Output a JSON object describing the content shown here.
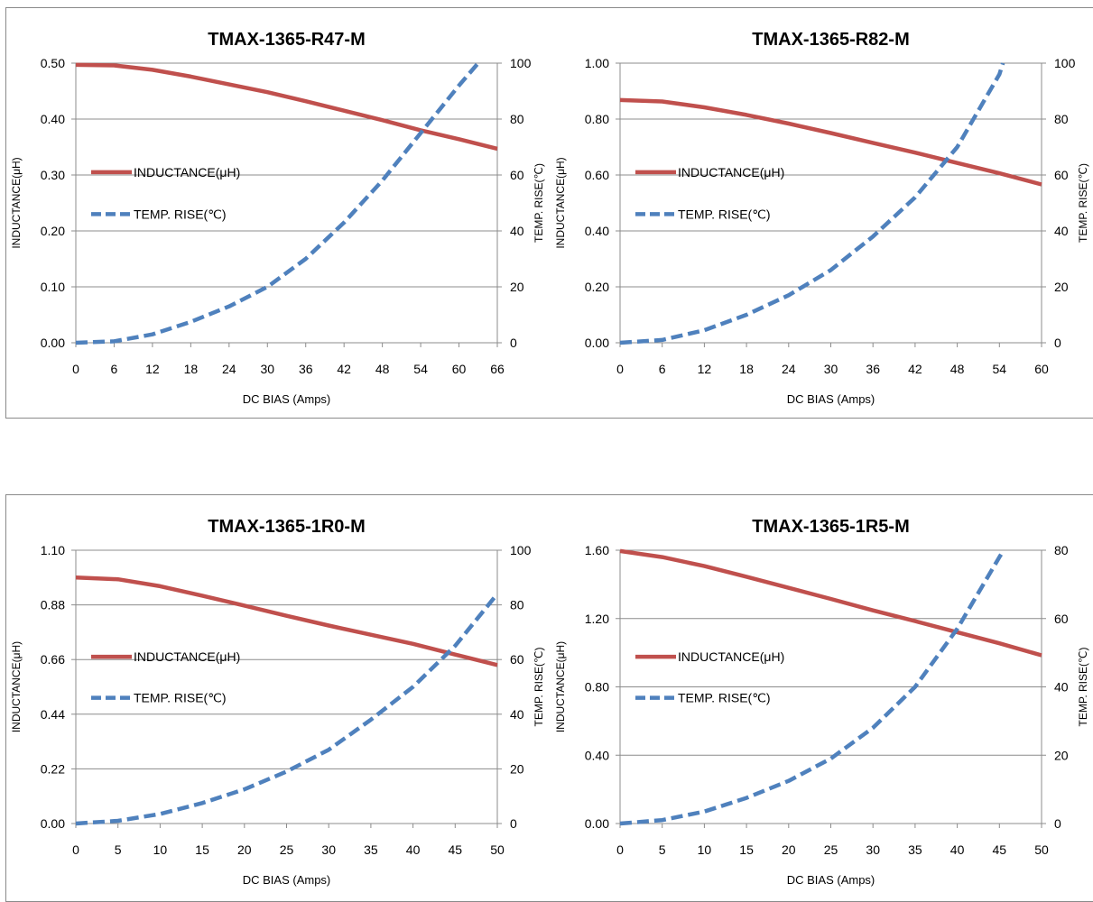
{
  "legend_labels": {
    "inductance": "INDUCTANCE(μH)",
    "temp": "TEMP. RISE(℃)"
  },
  "colors": {
    "inductance": "#c0504d",
    "temp": "#4f81bd",
    "grid": "#8c8c8c"
  },
  "chart_data": [
    {
      "type": "line",
      "title": "TMAX-1365-R47-M",
      "xlabel": "DC BIAS  (Amps)",
      "ylabel": "INDUCTANCE(μH)",
      "y2label": "TEMP. RISE(℃)",
      "xlim": [
        0,
        66
      ],
      "xticks": [
        0,
        6,
        12,
        18,
        24,
        30,
        36,
        42,
        48,
        54,
        60,
        66
      ],
      "ylim": [
        0,
        0.5
      ],
      "yticks": [
        "0.00",
        "0.10",
        "0.20",
        "0.30",
        "0.40",
        "0.50"
      ],
      "y2lim": [
        0,
        100
      ],
      "y2ticks": [
        "0",
        "20",
        "40",
        "60",
        "80",
        "100"
      ],
      "legend": "left-middle",
      "grid": true,
      "series": [
        {
          "name": "INDUCTANCE(μH)",
          "axis": "left",
          "style": "solid",
          "x": [
            0,
            6,
            12,
            18,
            24,
            30,
            36,
            42,
            48,
            54,
            60,
            66
          ],
          "y": [
            0.497,
            0.496,
            0.488,
            0.476,
            0.462,
            0.448,
            0.432,
            0.415,
            0.398,
            0.38,
            0.364,
            0.347
          ]
        },
        {
          "name": "TEMP. RISE(℃)",
          "axis": "right",
          "style": "dashed",
          "x": [
            0,
            6,
            12,
            18,
            24,
            30,
            36,
            42,
            48,
            54,
            60,
            63
          ],
          "y": [
            0,
            0.5,
            3,
            7.5,
            13,
            20,
            30,
            43,
            58,
            75,
            92,
            100
          ]
        }
      ]
    },
    {
      "type": "line",
      "title": "TMAX-1365-R82-M",
      "xlabel": "DC BIAS  (Amps)",
      "ylabel": "INDUCTANCE(μH)",
      "y2label": "TEMP. RISE(℃)",
      "xlim": [
        0,
        60
      ],
      "xticks": [
        0,
        6,
        12,
        18,
        24,
        30,
        36,
        42,
        48,
        54,
        60
      ],
      "ylim": [
        0,
        1.0
      ],
      "yticks": [
        "0.00",
        "0.20",
        "0.40",
        "0.60",
        "0.80",
        "1.00"
      ],
      "y2lim": [
        0,
        100
      ],
      "y2ticks": [
        "0",
        "20",
        "40",
        "60",
        "80",
        "100"
      ],
      "legend": "left-middle",
      "grid": true,
      "series": [
        {
          "name": "INDUCTANCE(μH)",
          "axis": "left",
          "style": "solid",
          "x": [
            0,
            6,
            12,
            18,
            24,
            30,
            36,
            42,
            48,
            54,
            60
          ],
          "y": [
            0.868,
            0.863,
            0.842,
            0.815,
            0.784,
            0.75,
            0.715,
            0.68,
            0.643,
            0.606,
            0.566
          ]
        },
        {
          "name": "TEMP. RISE(℃)",
          "axis": "right",
          "style": "dashed",
          "x": [
            0,
            6,
            12,
            18,
            24,
            30,
            36,
            42,
            48,
            54,
            54.5
          ],
          "y": [
            0,
            1,
            4.5,
            10,
            17,
            26,
            38,
            52,
            70,
            96,
            100
          ]
        }
      ]
    },
    {
      "type": "line",
      "title": "TMAX-1365-1R0-M",
      "xlabel": "DC BIAS  (Amps)",
      "ylabel": "INDUCTANCE(μH)",
      "y2label": "TEMP. RISE(℃)",
      "xlim": [
        0,
        50
      ],
      "xticks": [
        0,
        5,
        10,
        15,
        20,
        25,
        30,
        35,
        40,
        45,
        50
      ],
      "ylim": [
        0,
        1.1
      ],
      "yticks": [
        "0.00",
        "0.22",
        "0.44",
        "0.66",
        "0.88",
        "1.10"
      ],
      "y2lim": [
        0,
        100
      ],
      "y2ticks": [
        "0",
        "20",
        "40",
        "60",
        "80",
        "100"
      ],
      "legend": "left-middle",
      "grid": true,
      "series": [
        {
          "name": "INDUCTANCE(μH)",
          "axis": "left",
          "style": "solid",
          "x": [
            0,
            5,
            10,
            15,
            20,
            25,
            30,
            35,
            40,
            45,
            50
          ],
          "y": [
            0.99,
            0.983,
            0.955,
            0.917,
            0.877,
            0.836,
            0.797,
            0.76,
            0.723,
            0.68,
            0.638
          ]
        },
        {
          "name": "TEMP. RISE(℃)",
          "axis": "right",
          "style": "dashed",
          "x": [
            0,
            5,
            10,
            15,
            20,
            25,
            30,
            35,
            40,
            45,
            50
          ],
          "y": [
            0,
            1,
            3.5,
            7.5,
            12.5,
            19,
            27,
            38,
            50,
            65,
            84
          ]
        }
      ]
    },
    {
      "type": "line",
      "title": "TMAX-1365-1R5-M",
      "xlabel": "DC BIAS  (Amps)",
      "ylabel": "INDUCTANCE(μH)",
      "y2label": "TEMP. RISE(℃)",
      "xlim": [
        0,
        50
      ],
      "xticks": [
        0,
        5,
        10,
        15,
        20,
        25,
        30,
        35,
        40,
        45,
        50
      ],
      "ylim": [
        0,
        1.6
      ],
      "yticks": [
        "0.00",
        "0.40",
        "0.80",
        "1.20",
        "1.60"
      ],
      "y2lim": [
        0,
        80
      ],
      "y2ticks": [
        "0",
        "20",
        "40",
        "60",
        "80"
      ],
      "legend": "left-middle",
      "grid": true,
      "series": [
        {
          "name": "INDUCTANCE(μH)",
          "axis": "left",
          "style": "solid",
          "x": [
            0,
            5,
            10,
            15,
            20,
            25,
            30,
            35,
            40,
            45,
            50
          ],
          "y": [
            1.595,
            1.56,
            1.507,
            1.445,
            1.38,
            1.315,
            1.248,
            1.185,
            1.12,
            1.055,
            0.985
          ]
        },
        {
          "name": "TEMP. RISE(℃)",
          "axis": "right",
          "style": "dashed",
          "x": [
            0,
            5,
            10,
            15,
            20,
            25,
            30,
            35,
            40,
            45,
            45.5
          ],
          "y": [
            0,
            1,
            3.5,
            7.5,
            12.5,
            19,
            28,
            40,
            57,
            78,
            80
          ]
        }
      ]
    }
  ]
}
